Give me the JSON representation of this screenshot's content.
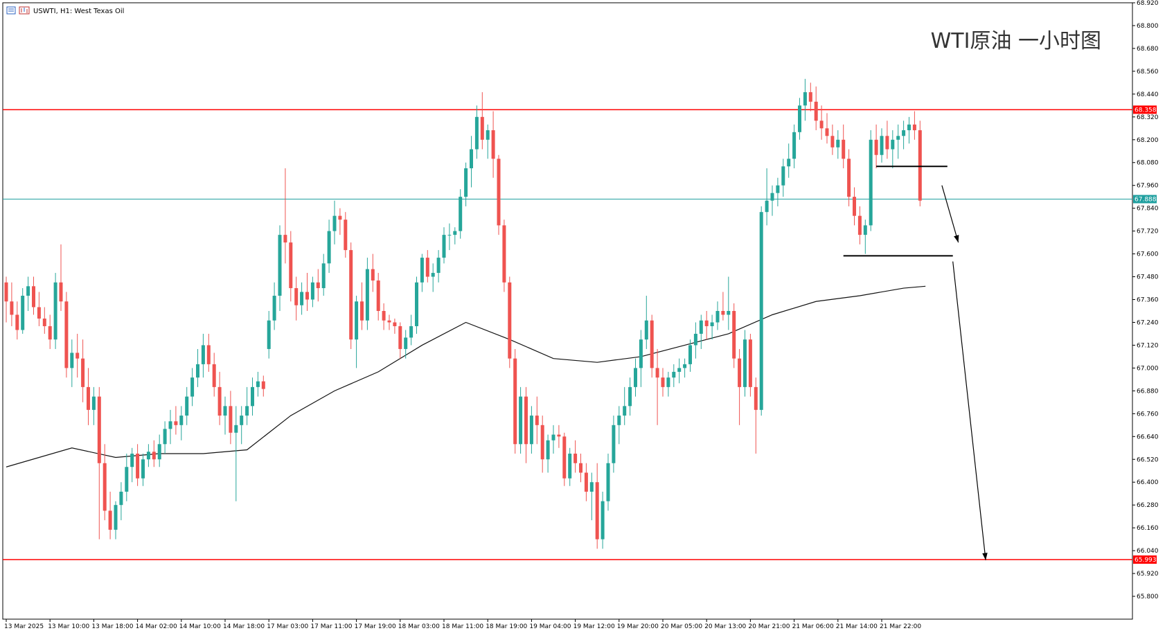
{
  "header": {
    "symbol_text": "USWTI, H1:  West Texas Oil"
  },
  "chart_title": "WTI原油 一小时图",
  "chart_data": {
    "type": "candlestick",
    "symbol": "USWTI",
    "timeframe": "H1",
    "instrument_name": "West Texas Oil",
    "ylim": [
      65.68,
      68.92
    ],
    "y_ticks": [
      "68.920",
      "68.800",
      "68.680",
      "68.560",
      "68.440",
      "68.320",
      "68.200",
      "68.080",
      "67.960",
      "67.840",
      "67.720",
      "67.600",
      "67.480",
      "67.360",
      "67.240",
      "67.120",
      "67.000",
      "66.880",
      "66.760",
      "66.640",
      "66.520",
      "66.400",
      "66.280",
      "66.160",
      "66.040",
      "65.920",
      "65.800"
    ],
    "x_ticks": [
      "13 Mar 2025",
      "13 Mar 10:00",
      "13 Mar 18:00",
      "14 Mar 02:00",
      "14 Mar 10:00",
      "14 Mar 18:00",
      "17 Mar 03:00",
      "17 Mar 11:00",
      "17 Mar 19:00",
      "18 Mar 03:00",
      "18 Mar 11:00",
      "18 Mar 19:00",
      "19 Mar 04:00",
      "19 Mar 12:00",
      "19 Mar 20:00",
      "20 Mar 05:00",
      "20 Mar 13:00",
      "20 Mar 21:00",
      "21 Mar 06:00",
      "21 Mar 14:00",
      "21 Mar 22:00"
    ],
    "bars_per_tick": 8,
    "bull_color": "#26a69a",
    "bear_color": "#ef5350",
    "ohlc": [
      [
        67.45,
        67.48,
        67.24,
        67.35
      ],
      [
        67.35,
        67.45,
        67.22,
        67.28
      ],
      [
        67.28,
        67.35,
        67.15,
        67.2
      ],
      [
        67.2,
        67.42,
        67.18,
        67.38
      ],
      [
        67.38,
        67.48,
        67.3,
        67.43
      ],
      [
        67.43,
        67.48,
        67.28,
        67.32
      ],
      [
        67.32,
        67.4,
        67.22,
        67.26
      ],
      [
        67.26,
        67.32,
        67.18,
        67.22
      ],
      [
        67.22,
        67.28,
        67.1,
        67.15
      ],
      [
        67.15,
        67.5,
        67.1,
        67.45
      ],
      [
        67.45,
        67.65,
        67.3,
        67.35
      ],
      [
        67.35,
        67.4,
        66.95,
        67.0
      ],
      [
        67.0,
        67.15,
        66.9,
        67.08
      ],
      [
        67.08,
        67.18,
        66.95,
        67.05
      ],
      [
        67.05,
        67.15,
        66.82,
        66.9
      ],
      [
        66.9,
        67.0,
        66.7,
        66.78
      ],
      [
        66.78,
        66.9,
        66.7,
        66.85
      ],
      [
        66.85,
        66.9,
        66.1,
        66.5
      ],
      [
        66.5,
        66.6,
        66.2,
        66.25
      ],
      [
        66.25,
        66.35,
        66.1,
        66.15
      ],
      [
        66.15,
        66.3,
        66.1,
        66.28
      ],
      [
        66.28,
        66.4,
        66.2,
        66.35
      ],
      [
        66.35,
        66.55,
        66.3,
        66.48
      ],
      [
        66.48,
        66.58,
        66.4,
        66.55
      ],
      [
        66.55,
        66.6,
        66.38,
        66.42
      ],
      [
        66.42,
        66.55,
        66.38,
        66.52
      ],
      [
        66.52,
        66.6,
        66.48,
        66.56
      ],
      [
        66.56,
        66.62,
        66.48,
        66.52
      ],
      [
        66.52,
        66.65,
        66.48,
        66.6
      ],
      [
        66.6,
        66.72,
        66.55,
        66.68
      ],
      [
        66.68,
        66.78,
        66.6,
        66.72
      ],
      [
        66.72,
        66.8,
        66.65,
        66.7
      ],
      [
        66.7,
        66.8,
        66.62,
        66.75
      ],
      [
        66.75,
        66.9,
        66.7,
        66.85
      ],
      [
        66.85,
        67.0,
        66.8,
        66.95
      ],
      [
        66.95,
        67.1,
        66.9,
        67.02
      ],
      [
        67.02,
        67.18,
        66.95,
        67.12
      ],
      [
        67.12,
        67.18,
        66.98,
        67.02
      ],
      [
        67.02,
        67.08,
        66.85,
        66.9
      ],
      [
        66.9,
        66.98,
        66.7,
        66.75
      ],
      [
        66.75,
        66.85,
        66.65,
        66.8
      ],
      [
        66.8,
        66.88,
        66.6,
        66.66
      ],
      [
        66.66,
        66.8,
        66.3,
        66.7
      ],
      [
        66.7,
        66.8,
        66.6,
        66.75
      ],
      [
        66.75,
        66.9,
        66.7,
        66.8
      ],
      [
        66.8,
        66.95,
        66.75,
        66.9
      ],
      [
        66.9,
        66.98,
        66.85,
        66.93
      ],
      [
        66.93,
        66.96,
        66.85,
        66.89
      ],
      [
        67.1,
        67.3,
        67.05,
        67.25
      ],
      [
        67.25,
        67.45,
        67.2,
        67.38
      ],
      [
        67.38,
        67.75,
        67.3,
        67.7
      ],
      [
        67.7,
        68.05,
        67.55,
        67.66
      ],
      [
        67.66,
        67.72,
        67.35,
        67.42
      ],
      [
        67.42,
        67.48,
        67.25,
        67.33
      ],
      [
        67.33,
        67.45,
        67.28,
        67.4
      ],
      [
        67.4,
        67.5,
        67.3,
        67.36
      ],
      [
        67.36,
        67.48,
        67.32,
        67.45
      ],
      [
        67.45,
        67.52,
        67.35,
        67.42
      ],
      [
        67.42,
        67.6,
        67.38,
        67.55
      ],
      [
        67.55,
        67.78,
        67.5,
        67.72
      ],
      [
        67.72,
        67.88,
        67.65,
        67.8
      ],
      [
        67.8,
        67.84,
        67.7,
        67.78
      ],
      [
        67.78,
        67.82,
        67.58,
        67.62
      ],
      [
        67.62,
        67.66,
        67.1,
        67.15
      ],
      [
        67.15,
        67.38,
        67.0,
        67.35
      ],
      [
        67.35,
        67.45,
        67.2,
        67.25
      ],
      [
        67.25,
        67.58,
        67.2,
        67.52
      ],
      [
        67.52,
        67.6,
        67.4,
        67.46
      ],
      [
        67.46,
        67.5,
        67.25,
        67.3
      ],
      [
        67.3,
        67.34,
        67.2,
        67.25
      ],
      [
        67.25,
        67.28,
        67.2,
        67.24
      ],
      [
        67.24,
        67.26,
        67.18,
        67.22
      ],
      [
        67.22,
        67.24,
        67.05,
        67.1
      ],
      [
        67.1,
        67.2,
        67.05,
        67.16
      ],
      [
        67.16,
        67.28,
        67.12,
        67.22
      ],
      [
        67.22,
        67.48,
        67.18,
        67.45
      ],
      [
        67.45,
        67.6,
        67.4,
        67.58
      ],
      [
        67.58,
        67.62,
        67.45,
        67.48
      ],
      [
        67.48,
        67.55,
        67.4,
        67.5
      ],
      [
        67.5,
        67.62,
        67.45,
        67.58
      ],
      [
        67.58,
        67.74,
        67.55,
        67.7
      ],
      [
        67.7,
        67.76,
        67.62,
        67.7
      ],
      [
        67.7,
        67.74,
        67.65,
        67.72
      ],
      [
        67.72,
        67.94,
        67.68,
        67.9
      ],
      [
        67.9,
        68.08,
        67.85,
        68.05
      ],
      [
        68.05,
        68.22,
        67.95,
        68.15
      ],
      [
        68.15,
        68.38,
        68.1,
        68.32
      ],
      [
        68.32,
        68.45,
        68.15,
        68.2
      ],
      [
        68.2,
        68.28,
        68.1,
        68.25
      ],
      [
        68.25,
        68.35,
        68.0,
        68.1
      ],
      [
        68.1,
        68.12,
        67.7,
        67.75
      ],
      [
        67.75,
        67.78,
        67.4,
        67.45
      ],
      [
        67.45,
        67.48,
        67.0,
        67.05
      ],
      [
        67.05,
        67.1,
        66.55,
        66.6
      ],
      [
        66.6,
        66.9,
        66.55,
        66.85
      ],
      [
        66.85,
        66.9,
        66.5,
        66.6
      ],
      [
        66.6,
        66.8,
        66.55,
        66.75
      ],
      [
        66.75,
        66.85,
        66.6,
        66.7
      ],
      [
        66.7,
        66.75,
        66.45,
        66.52
      ],
      [
        66.52,
        66.65,
        66.45,
        66.62
      ],
      [
        66.62,
        66.7,
        66.55,
        66.65
      ],
      [
        66.65,
        66.7,
        66.58,
        66.64
      ],
      [
        66.64,
        66.66,
        66.38,
        66.42
      ],
      [
        66.42,
        66.58,
        66.38,
        66.55
      ],
      [
        66.55,
        66.62,
        66.45,
        66.5
      ],
      [
        66.5,
        66.55,
        66.4,
        66.45
      ],
      [
        66.45,
        66.5,
        66.3,
        66.35
      ],
      [
        66.35,
        66.45,
        66.2,
        66.4
      ],
      [
        66.4,
        66.5,
        66.05,
        66.1
      ],
      [
        66.1,
        66.35,
        66.05,
        66.3
      ],
      [
        66.3,
        66.55,
        66.25,
        66.5
      ],
      [
        66.5,
        66.75,
        66.45,
        66.7
      ],
      [
        66.7,
        66.8,
        66.6,
        66.75
      ],
      [
        66.75,
        66.9,
        66.7,
        66.8
      ],
      [
        66.8,
        66.95,
        66.75,
        66.9
      ],
      [
        66.9,
        67.05,
        66.85,
        67.0
      ],
      [
        67.0,
        67.2,
        66.9,
        67.15
      ],
      [
        67.15,
        67.38,
        67.1,
        67.25
      ],
      [
        67.25,
        67.28,
        66.95,
        67.0
      ],
      [
        67.0,
        67.1,
        66.7,
        66.95
      ],
      [
        66.95,
        67.0,
        66.85,
        66.9
      ],
      [
        66.9,
        66.98,
        66.85,
        66.95
      ],
      [
        66.95,
        67.02,
        66.9,
        66.98
      ],
      [
        66.98,
        67.05,
        66.92,
        67.0
      ],
      [
        67.0,
        67.05,
        66.95,
        67.02
      ],
      [
        67.02,
        67.15,
        66.98,
        67.12
      ],
      [
        67.12,
        67.24,
        67.05,
        67.18
      ],
      [
        67.18,
        67.28,
        67.1,
        67.25
      ],
      [
        67.25,
        67.3,
        67.15,
        67.22
      ],
      [
        67.22,
        67.28,
        67.15,
        67.24
      ],
      [
        67.24,
        67.35,
        67.2,
        67.3
      ],
      [
        67.3,
        67.4,
        67.25,
        67.28
      ],
      [
        67.28,
        67.48,
        67.2,
        67.3
      ],
      [
        67.3,
        67.34,
        67.0,
        67.05
      ],
      [
        67.05,
        67.1,
        66.7,
        66.9
      ],
      [
        66.9,
        67.2,
        66.85,
        67.15
      ],
      [
        67.15,
        67.18,
        66.85,
        66.9
      ],
      [
        66.9,
        66.95,
        66.55,
        66.78
      ],
      [
        66.78,
        67.85,
        66.75,
        67.82
      ],
      [
        67.82,
        68.05,
        67.75,
        67.88
      ],
      [
        67.88,
        67.96,
        67.8,
        67.92
      ],
      [
        67.92,
        68.0,
        67.85,
        67.96
      ],
      [
        67.96,
        68.1,
        67.9,
        68.06
      ],
      [
        68.06,
        68.18,
        68.0,
        68.1
      ],
      [
        68.1,
        68.28,
        68.05,
        68.24
      ],
      [
        68.24,
        68.42,
        68.2,
        68.38
      ],
      [
        68.38,
        68.52,
        68.3,
        68.45
      ],
      [
        68.45,
        68.5,
        68.35,
        68.4
      ],
      [
        68.4,
        68.48,
        68.25,
        68.3
      ],
      [
        68.3,
        68.38,
        68.2,
        68.26
      ],
      [
        68.26,
        68.34,
        68.18,
        68.22
      ],
      [
        68.22,
        68.28,
        68.12,
        68.16
      ],
      [
        68.16,
        68.25,
        68.1,
        68.2
      ],
      [
        68.2,
        68.28,
        68.05,
        68.1
      ],
      [
        68.1,
        68.15,
        67.85,
        67.9
      ],
      [
        67.9,
        67.95,
        67.75,
        67.8
      ],
      [
        67.8,
        67.85,
        67.65,
        67.7
      ],
      [
        67.7,
        67.78,
        67.6,
        67.75
      ],
      [
        67.75,
        68.25,
        67.72,
        68.2
      ],
      [
        68.2,
        68.28,
        68.05,
        68.12
      ],
      [
        68.12,
        68.26,
        68.08,
        68.22
      ],
      [
        68.22,
        68.3,
        68.1,
        68.15
      ],
      [
        68.15,
        68.25,
        68.05,
        68.2
      ],
      [
        68.2,
        68.28,
        68.1,
        68.22
      ],
      [
        68.22,
        68.3,
        68.15,
        68.25
      ],
      [
        68.25,
        68.32,
        68.18,
        68.28
      ],
      [
        68.28,
        68.35,
        68.2,
        68.25
      ],
      [
        68.25,
        68.3,
        67.85,
        67.88
      ]
    ],
    "moving_average": {
      "x_bar": [
        0,
        12,
        20,
        28,
        36,
        44,
        52,
        60,
        68,
        76,
        84,
        92,
        100,
        108,
        116,
        124,
        132,
        140,
        148,
        156,
        164,
        168
      ],
      "y": [
        66.48,
        66.58,
        66.53,
        66.55,
        66.55,
        66.57,
        66.75,
        66.88,
        66.98,
        67.12,
        67.24,
        67.15,
        67.05,
        67.03,
        67.06,
        67.12,
        67.18,
        67.28,
        67.35,
        67.38,
        67.42,
        67.43
      ]
    },
    "horizontal_lines": [
      {
        "kind": "resistance",
        "value": 68.358,
        "label": "68.358",
        "color": "#ff0000"
      },
      {
        "kind": "support",
        "value": 65.993,
        "label": "65.993",
        "color": "#ff0000"
      },
      {
        "kind": "current_price",
        "value": 67.888,
        "label": "67.888",
        "color": "#20a0a0"
      }
    ],
    "segments": [
      {
        "from_bar": 159,
        "to_bar": 172,
        "value": 68.06
      },
      {
        "from_bar": 153,
        "to_bar": 173,
        "value": 67.59
      }
    ],
    "arrows": [
      {
        "from_bar": 171,
        "from_value": 67.96,
        "to_bar": 174,
        "to_value": 67.66
      },
      {
        "from_bar": 173,
        "from_value": 67.56,
        "to_bar": 179,
        "to_value": 65.99
      }
    ]
  }
}
